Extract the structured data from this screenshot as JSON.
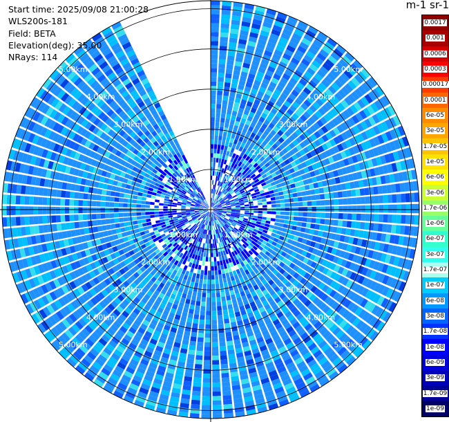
{
  "info": {
    "start_time": "Start time: 2025/09/08 21:00:28",
    "instrument": "WLS200s-181",
    "field": "Field: BETA",
    "elevation": "Elevation(deg): 35.00",
    "nrays": "NRays: 114"
  },
  "chart_data": {
    "type": "heatmap",
    "projection": "polar-ppi",
    "field": "BETA",
    "elevation_deg": 35.0,
    "nrays": 114,
    "range_max_km": 5.2,
    "range_rings_km": [
      1.0,
      2.0,
      3.0,
      4.0,
      5.0
    ],
    "ring_labels": [
      "1.00km",
      "2.00km",
      "3.00km",
      "4.00km",
      "5.00km"
    ],
    "missing_sector_deg": [
      -25,
      0
    ],
    "grid": true,
    "colorbar": {
      "title": "m-1 sr-1",
      "tick_labels": [
        "0.0017",
        "0.001",
        "0.0006",
        "0.0003",
        "0.00017",
        "0.0001",
        "6e-05",
        "3e-05",
        "1.7e-05",
        "1e-05",
        "6e-06",
        "3e-06",
        "1.7e-06",
        "1e-06",
        "6e-07",
        "3e-07",
        "1.7e-07",
        "1e-07",
        "6e-08",
        "3e-08",
        "1.7e-08",
        "1e-08",
        "6e-09",
        "3e-09",
        "1.7e-09",
        "1e-09"
      ],
      "colors": [
        "#8b0000",
        "#a80000",
        "#d40000",
        "#ff0000",
        "#ff3b00",
        "#ff6600",
        "#ff8c00",
        "#ffa500",
        "#ffc400",
        "#ffe200",
        "#ffff00",
        "#ccff33",
        "#99ff66",
        "#66ff99",
        "#33ffcc",
        "#33ffee",
        "#aaffee",
        "#00ccff",
        "#0099ff",
        "#0066ff",
        "#0033ff",
        "#0000ff",
        "#0000dd",
        "#0000bb",
        "#000099",
        "#000066"
      ]
    },
    "dominant_values": [
      "1e-08",
      "6e-08",
      "1.7e-07"
    ]
  }
}
